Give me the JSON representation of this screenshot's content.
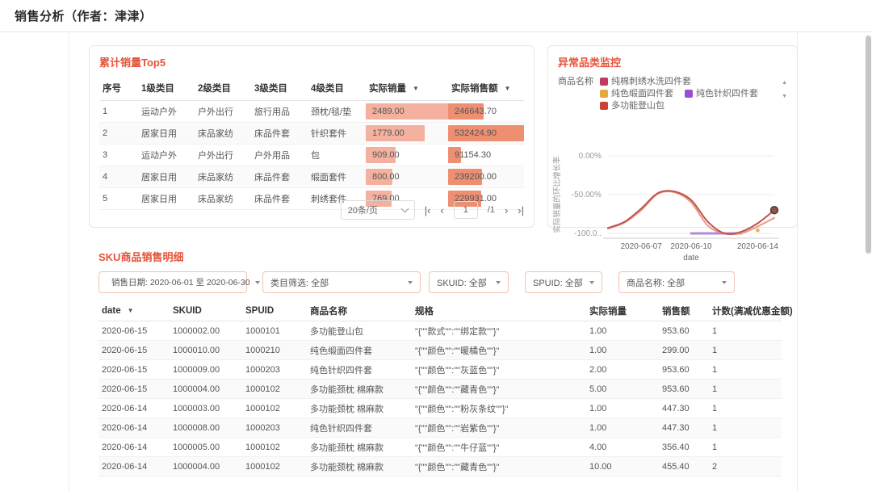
{
  "header": {
    "title": "销售分析（作者：津津）"
  },
  "colors": {
    "accent": "#e5543a",
    "qty_bar": "#f5b1a0",
    "amount_bar": "#ee8f72"
  },
  "icons": {
    "first_page": "|‹",
    "prev_page": "‹",
    "next_page": "›",
    "last_page": "›|",
    "sort_down": "▼",
    "legend_up": "▲",
    "legend_down": "▼"
  },
  "top5": {
    "title": "累计销量Top5",
    "columns": [
      "序号",
      "1级类目",
      "2级类目",
      "3级类目",
      "4级类目",
      "实际销量",
      "实际销售额"
    ],
    "sortable_columns": [
      "实际销量",
      "实际销售额"
    ],
    "rows": [
      {
        "no": "1",
        "cat1": "运动户外",
        "cat2": "户外出行",
        "cat3": "旅行用品",
        "cat4": "颈枕/毯/垫",
        "qty": 2489.0,
        "qty_label": "2489.00",
        "amount": 246643.7,
        "amount_label": "246643.70"
      },
      {
        "no": "2",
        "cat1": "居家日用",
        "cat2": "床品家纺",
        "cat3": "床品件套",
        "cat4": "针织套件",
        "qty": 1779.0,
        "qty_label": "1779.00",
        "amount": 532424.9,
        "amount_label": "532424.90"
      },
      {
        "no": "3",
        "cat1": "运动户外",
        "cat2": "户外出行",
        "cat3": "户外用品",
        "cat4": "包",
        "qty": 909.0,
        "qty_label": "909.00",
        "amount": 91154.3,
        "amount_label": "91154.30"
      },
      {
        "no": "4",
        "cat1": "居家日用",
        "cat2": "床品家纺",
        "cat3": "床品件套",
        "cat4": "缎面套件",
        "qty": 800.0,
        "qty_label": "800.00",
        "amount": 239200.0,
        "amount_label": "239200.00"
      },
      {
        "no": "5",
        "cat1": "居家日用",
        "cat2": "床品家纺",
        "cat3": "床品件套",
        "cat4": "刺绣套件",
        "qty": 769.0,
        "qty_label": "769.00",
        "amount": 229931.0,
        "amount_label": "229931.00"
      }
    ],
    "pagination": {
      "page_size": "20条/页",
      "current_page": "1",
      "total_pages": "/1"
    }
  },
  "monitor": {
    "title": "异常品类监控",
    "legend_label": "商品名称"
  },
  "chart_data": {
    "type": "line",
    "x": [
      "2020-06-05",
      "2020-06-06",
      "2020-06-07",
      "2020-06-08",
      "2020-06-09",
      "2020-06-10",
      "2020-06-11",
      "2020-06-12",
      "2020-06-13",
      "2020-06-14",
      "2020-06-15"
    ],
    "series": [
      {
        "name": "多功能登山包",
        "color": "#c0544a",
        "values": [
          -93,
          -85,
          -68,
          -48,
          -46,
          -57,
          -85,
          -100,
          -98,
          -87,
          -70
        ],
        "end_marker": true
      },
      {
        "name": "纯棉刺绣水洗四件套",
        "color": "#e59a8c",
        "values": [
          -94,
          -86,
          -70,
          -49,
          -47,
          -60,
          -90,
          -100,
          -100,
          -91,
          -80
        ]
      },
      {
        "name": "纯色针织四件套",
        "color": "#b08bd8",
        "values": [
          null,
          null,
          null,
          null,
          null,
          -100,
          -100,
          -100,
          -100,
          null,
          null
        ]
      },
      {
        "name": "纯色缎面四件套",
        "color": "#e2bb5e",
        "values": [
          null,
          null,
          null,
          null,
          null,
          null,
          null,
          null,
          null,
          -96,
          null
        ],
        "point_only": true
      }
    ],
    "legend": [
      {
        "name": "纯棉刺绣水洗四件套",
        "color": "#c23a62"
      },
      {
        "name": "纯色缎面四件套",
        "color": "#e2a93d"
      },
      {
        "name": "纯色针织四件套",
        "color": "#9a4fd0"
      },
      {
        "name": "多功能登山包",
        "color": "#c84237"
      }
    ],
    "title": "异常品类监控",
    "xlabel": "date",
    "ylabel": "实际销量的环比增长率",
    "ylim": [
      -100,
      0
    ],
    "yticks": [
      "0.00%",
      "-50.00%",
      "-100.0.."
    ],
    "xticks": [
      {
        "label": "2020-06-07",
        "index": 2
      },
      {
        "label": "2020-06-10",
        "index": 5
      },
      {
        "label": "2020-06-14",
        "index": 9
      }
    ],
    "grid": true,
    "legend_position": "top"
  },
  "sku": {
    "title": "SKU商品销售明细",
    "filters": [
      {
        "id": "date-range",
        "icon": "calendar-icon",
        "label": "销售日期: 2020-06-01 至 2020-06-30"
      },
      {
        "id": "category",
        "label": "类目筛选: 全部"
      },
      {
        "id": "skuid",
        "label": "SKUID: 全部"
      },
      {
        "id": "spuid",
        "label": "SPUID: 全部"
      },
      {
        "id": "product-name",
        "label": "商品名称: 全部"
      }
    ],
    "columns": [
      "date",
      "SKUID",
      "SPUID",
      "商品名称",
      "规格",
      "实际销量",
      "销售额",
      "计数(满减优惠金额)"
    ],
    "sortable_columns": [
      "date"
    ],
    "rows": [
      [
        "2020-06-15",
        "1000002.00",
        "1000101",
        "多功能登山包",
        "\"{\"\"款式\"\":\"\"绑定款\"\"}\"",
        "1.00",
        "953.60",
        "1"
      ],
      [
        "2020-06-15",
        "1000010.00",
        "1000210",
        "纯色缎面四件套",
        "\"{\"\"颜色\"\":\"\"暖橘色\"\"}\"",
        "1.00",
        "299.00",
        "1"
      ],
      [
        "2020-06-15",
        "1000009.00",
        "1000203",
        "纯色针织四件套",
        "\"{\"\"颜色\"\":\"\"灰蓝色\"\"}\"",
        "2.00",
        "953.60",
        "1"
      ],
      [
        "2020-06-15",
        "1000004.00",
        "1000102",
        "多功能颈枕 棉麻款",
        "\"{\"\"颜色\"\":\"\"藏青色\"\"}\"",
        "5.00",
        "953.60",
        "1"
      ],
      [
        "2020-06-14",
        "1000003.00",
        "1000102",
        "多功能颈枕 棉麻款",
        "\"{\"\"颜色\"\":\"\"粉灰条纹\"\"}\"",
        "1.00",
        "447.30",
        "1"
      ],
      [
        "2020-06-14",
        "1000008.00",
        "1000203",
        "纯色针织四件套",
        "\"{\"\"颜色\"\":\"\"岩紫色\"\"}\"",
        "1.00",
        "447.30",
        "1"
      ],
      [
        "2020-06-14",
        "1000005.00",
        "1000102",
        "多功能颈枕 棉麻款",
        "\"{\"\"颜色\"\":\"\"牛仔蓝\"\"}\"",
        "4.00",
        "356.40",
        "1"
      ],
      [
        "2020-06-14",
        "1000004.00",
        "1000102",
        "多功能颈枕 棉麻款",
        "\"{\"\"颜色\"\":\"\"藏青色\"\"}\"",
        "10.00",
        "455.40",
        "2"
      ]
    ]
  }
}
